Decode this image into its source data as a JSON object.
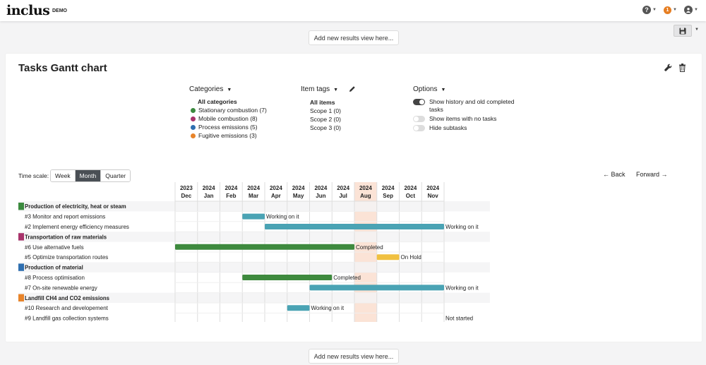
{
  "brand": {
    "name": "inclus",
    "tag": "DEMO"
  },
  "topbar": {
    "help_icon": "question-circle-icon",
    "notification_count": "1",
    "user_icon": "user-circle-icon"
  },
  "add_view_label": "Add new results view here...",
  "save_icon": "floppy-disk-icon",
  "panel": {
    "title": "Tasks Gantt chart",
    "settings_icon": "wrench-icon",
    "delete_icon": "trash-icon"
  },
  "filters": {
    "categories": {
      "label": "Categories",
      "items": [
        {
          "label": "All categories",
          "color": "",
          "bold": true
        },
        {
          "label": "Stationary combustion (7)",
          "color": "#3b8a3e"
        },
        {
          "label": "Mobile combustion (8)",
          "color": "#a8336b"
        },
        {
          "label": "Process emissions (5)",
          "color": "#2f6fb0"
        },
        {
          "label": "Fugitive emissions (3)",
          "color": "#e8842a"
        }
      ]
    },
    "tags": {
      "label": "Item tags",
      "edit_icon": "pencil-icon",
      "items": [
        {
          "label": "All items",
          "bold": true
        },
        {
          "label": "Scope 1 (0)"
        },
        {
          "label": "Scope 2 (0)"
        },
        {
          "label": "Scope 3 (0)"
        }
      ]
    },
    "options": {
      "label": "Options",
      "items": [
        {
          "label": "Show history and old completed tasks",
          "on": true
        },
        {
          "label": "Show items with no tasks",
          "on": false
        },
        {
          "label": "Hide subtasks",
          "on": false
        }
      ]
    }
  },
  "timescale": {
    "label": "Time scale:",
    "options": [
      "Week",
      "Month",
      "Quarter"
    ],
    "selected": "Month"
  },
  "nav": {
    "back": "← Back",
    "forward": "Forward →"
  },
  "gantt": {
    "months": [
      {
        "year": "2023",
        "month": "Dec"
      },
      {
        "year": "2024",
        "month": "Jan"
      },
      {
        "year": "2024",
        "month": "Feb"
      },
      {
        "year": "2024",
        "month": "Mar"
      },
      {
        "year": "2024",
        "month": "Apr"
      },
      {
        "year": "2024",
        "month": "May"
      },
      {
        "year": "2024",
        "month": "Jun"
      },
      {
        "year": "2024",
        "month": "Jul"
      },
      {
        "year": "2024",
        "month": "Aug"
      },
      {
        "year": "2024",
        "month": "Sep"
      },
      {
        "year": "2024",
        "month": "Oct"
      },
      {
        "year": "2024",
        "month": "Nov"
      }
    ],
    "current_month_index": 8,
    "status_colors": {
      "Working on it": "#4aa3b4",
      "Completed": "#3e8a3e",
      "On Hold": "#f0c040",
      "Not started": ""
    },
    "rows": [
      {
        "type": "group",
        "label": "Production of electricity, heat or steam",
        "color": "#3b8a3e"
      },
      {
        "type": "task",
        "label": "#3 Monitor and report emissions",
        "start": 3.0,
        "end": 4.0,
        "status": "Working on it"
      },
      {
        "type": "task",
        "label": "#2 Implement energy efficiency measures",
        "start": 4.0,
        "end": 12.0,
        "status": "Working on it"
      },
      {
        "type": "group",
        "label": "Transportation of raw materials",
        "color": "#a8336b"
      },
      {
        "type": "task",
        "label": "#6 Use alternative fuels",
        "start": 0.0,
        "end": 8.0,
        "status": "Completed"
      },
      {
        "type": "task",
        "label": "#5 Optimize transportation routes",
        "start": 9.0,
        "end": 10.0,
        "status": "On Hold"
      },
      {
        "type": "group",
        "label": "Production of material",
        "color": "#2f6fb0"
      },
      {
        "type": "task",
        "label": "#8 Process optimisation",
        "start": 3.0,
        "end": 7.0,
        "status": "Completed"
      },
      {
        "type": "task",
        "label": "#7 On-site renewable energy",
        "start": 6.0,
        "end": 12.0,
        "status": "Working on it"
      },
      {
        "type": "group",
        "label": "Landfill CH4 and CO2 emissions",
        "color": "#e8842a"
      },
      {
        "type": "task",
        "label": "#10 Research and developement",
        "start": 5.0,
        "end": 6.0,
        "status": "Working on it"
      },
      {
        "type": "task",
        "label": "#9 Landfill gas collection systems",
        "start": null,
        "end": null,
        "status": "Not started"
      }
    ]
  }
}
